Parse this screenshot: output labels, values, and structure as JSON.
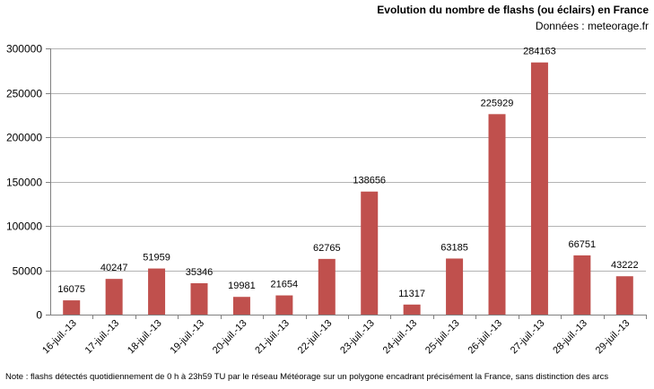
{
  "chart_data": {
    "type": "bar",
    "title": "Evolution du nombre de flashs (ou éclairs)  en France",
    "subtitle": "Données : meteorage.fr",
    "note": "Note : flashs détectés quotidiennement de 0 h à 23h59 TU par le réseau Météorage sur un polygone encadrant précisément la France, sans distinction des arcs",
    "categories": [
      "16-juil.-13",
      "17-juil.-13",
      "18-juil.-13",
      "19-juil.-13",
      "20-juil.-13",
      "21-juil.-13",
      "22-juil.-13",
      "23-juil.-13",
      "24-juil.-13",
      "25-juil.-13",
      "26-juil.-13",
      "27-juil.-13",
      "28-juil.-13",
      "29-juil.-13"
    ],
    "values": [
      16075,
      40247,
      51959,
      35346,
      19981,
      21654,
      62765,
      138656,
      11317,
      63185,
      225929,
      284163,
      66751,
      43222
    ],
    "data_labels": [
      "16075",
      "40247",
      "51959",
      "35346",
      "19981",
      "21654",
      "62765",
      "138656",
      "11317",
      "63185",
      "225929",
      "284163",
      "66751",
      "43222"
    ],
    "yticks": [
      0,
      50000,
      100000,
      150000,
      200000,
      250000,
      300000
    ],
    "ytick_labels": [
      "0",
      "50000",
      "100000",
      "150000",
      "200000",
      "250000",
      "300000"
    ],
    "ylim": [
      0,
      300000
    ],
    "xlabel": "",
    "ylabel": "",
    "grid": true,
    "legend": "none",
    "bar_color": "#c0504d",
    "grid_color": "#b3b3b3"
  }
}
